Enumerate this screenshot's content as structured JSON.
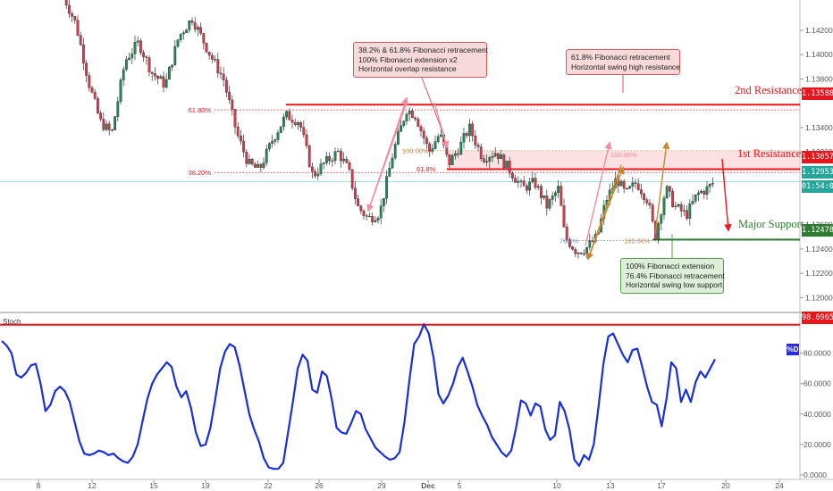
{
  "chart_data": [
    {
      "type": "candlestick",
      "title": "",
      "price_axis": {
        "ticks": [
          "1.14200",
          "1.14000",
          "1.13800",
          "1.13400",
          "1.13200",
          "1.12600",
          "1.12400",
          "1.12200",
          "1.12000"
        ],
        "ylim": [
          1.119,
          1.1445
        ]
      },
      "time_axis": {
        "ticks": [
          "8",
          "12",
          "15",
          "19",
          "22",
          "26",
          "29",
          "Dec",
          "5",
          "10",
          "13",
          "17",
          "20",
          "24"
        ]
      },
      "levels": [
        {
          "name": "2nd Resistance",
          "price": 1.13588,
          "tag": "1.13588",
          "color": "#e8161c"
        },
        {
          "name": "1st Resistance",
          "price": 1.13057,
          "tag": "1.13057",
          "color": "#e8161c"
        },
        {
          "name": "Major Support",
          "price": 1.12478,
          "tag": "1.12478",
          "color": "#2e7d32"
        }
      ],
      "current_price": {
        "tag": "1.12953",
        "countdown": "01:54:08",
        "color": "#26a69a"
      },
      "fib_labels": [
        {
          "text": "61.80%",
          "price": 1.13545
        },
        {
          "text": "38.20%",
          "price": 1.1303
        },
        {
          "text": "100.00%",
          "price": 1.1321
        },
        {
          "text": "61.8%",
          "price": 1.1306
        },
        {
          "text": "100.00%",
          "price": 1.1318
        },
        {
          "text": "76.4%",
          "price": 1.1247
        },
        {
          "text": "100.00%",
          "price": 1.1247
        }
      ],
      "annotations": [
        {
          "lines": [
            "38.2% & 61.8% Fibonacci retracement",
            "100% Fibonacci extension x2",
            "Horizontal overlap resistance"
          ]
        },
        {
          "lines": [
            "61.8% Fibonacci retracement",
            "Horizontal swing high resistance"
          ]
        },
        {
          "lines": [
            "100% Fibonacci extension",
            "76.4% Fibonacci retracement",
            "Horizontal swing low support"
          ]
        }
      ]
    },
    {
      "type": "line",
      "title": "Stoch",
      "badge": "%D",
      "ylim": [
        0,
        105
      ],
      "y_ticks": [
        "80.0000",
        "60.0000",
        "40.0000",
        "20.0000",
        "0.0000"
      ],
      "overbought_level": {
        "value": 98.6965,
        "tag": "98.6965",
        "color": "#e8161c"
      },
      "series": [
        {
          "color": "#1a2fd6",
          "values": [
            88,
            85,
            80,
            66,
            64,
            67,
            72,
            73,
            60,
            42,
            46,
            55,
            58,
            55,
            48,
            35,
            22,
            14,
            13,
            14,
            16,
            15,
            13,
            14,
            11,
            9,
            8,
            12,
            20,
            35,
            50,
            60,
            66,
            70,
            74,
            71,
            58,
            51,
            55,
            44,
            28,
            19,
            20,
            31,
            50,
            70,
            81,
            86,
            84,
            72,
            56,
            40,
            30,
            22,
            11,
            5,
            4,
            4,
            8,
            28,
            48,
            70,
            79,
            75,
            56,
            54,
            68,
            65,
            50,
            31,
            28,
            27,
            34,
            42,
            40,
            30,
            24,
            18,
            15,
            12,
            10,
            11,
            15,
            35,
            62,
            86,
            91,
            99,
            93,
            77,
            53,
            47,
            52,
            60,
            71,
            77,
            68,
            58,
            46,
            39,
            33,
            25,
            20,
            15,
            12,
            16,
            31,
            49,
            47,
            39,
            47,
            45,
            30,
            23,
            26,
            48,
            42,
            30,
            10,
            6,
            13,
            10,
            20,
            45,
            73,
            91,
            93,
            86,
            79,
            74,
            82,
            83,
            71,
            58,
            48,
            46,
            32,
            50,
            74,
            70,
            48,
            56,
            48,
            61,
            68,
            64,
            70,
            76
          ]
        }
      ]
    }
  ]
}
